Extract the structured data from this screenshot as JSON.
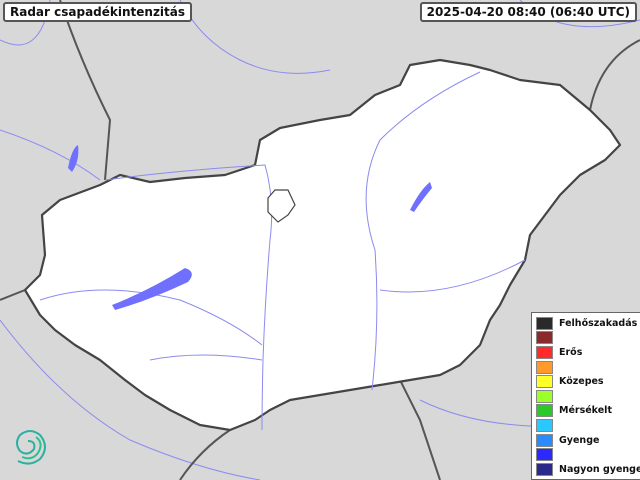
{
  "header": {
    "title": "Radar csapadékintenzitás",
    "timestamp": "2025-04-20 08:40 (06:40 UTC)"
  },
  "legend": {
    "items": [
      {
        "label": "Felhőszakadás",
        "color": "#2a2a2a"
      },
      {
        "label": "",
        "color": "#8b2a2a"
      },
      {
        "label": "Erős",
        "color": "#ff2a2a"
      },
      {
        "label": "",
        "color": "#ff9a2a"
      },
      {
        "label": "Közepes",
        "color": "#ffff2a"
      },
      {
        "label": "",
        "color": "#9aff2a"
      },
      {
        "label": "Mérsékelt",
        "color": "#2ac82a"
      },
      {
        "label": "",
        "color": "#2ac8ff"
      },
      {
        "label": "Gyenge",
        "color": "#2a8aff"
      },
      {
        "label": "",
        "color": "#2a2aff"
      },
      {
        "label": "Nagyon gyenge",
        "color": "#2a2a8a"
      }
    ]
  },
  "map": {
    "country_fill": "#ffffff",
    "surround_fill": "#d8d8d8",
    "water_color": "#7070ff",
    "border_color": "#444444"
  },
  "logo": {
    "icon": "spiral-logo-icon",
    "color": "#2ab0a0"
  }
}
